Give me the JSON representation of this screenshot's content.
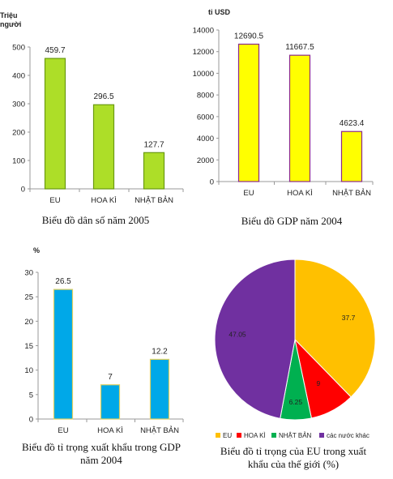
{
  "chart_data": [
    {
      "type": "bar",
      "title": "Biểu đồ dân số năm 2005",
      "ylabel_lines": [
        "Triệu",
        "người"
      ],
      "categories": [
        "EU",
        "HOA KÌ",
        "NHẬT BẢN"
      ],
      "values": [
        459.7,
        296.5,
        127.7
      ],
      "value_labels": [
        "459.7",
        "296.5",
        "127.7"
      ],
      "ylim": [
        0,
        500
      ],
      "yticks": [
        0,
        100,
        200,
        300,
        400,
        500
      ],
      "bar_color": "#adde28",
      "bar_border": "#6a9a10"
    },
    {
      "type": "bar",
      "title": "Biểu đồ GDP năm 2004",
      "ylabel": "tỉ USD",
      "categories": [
        "EU",
        "HOA KÌ",
        "NHẬT BẢN"
      ],
      "values": [
        12690.5,
        11667.5,
        4623.4
      ],
      "value_labels": [
        "12690.5",
        "11667.5",
        "4623.4"
      ],
      "ylim": [
        0,
        14000
      ],
      "yticks": [
        0,
        2000,
        4000,
        6000,
        8000,
        10000,
        12000,
        14000
      ],
      "bar_color": "#ffff00",
      "bar_border": "#8b2a8b"
    },
    {
      "type": "bar",
      "title_lines": [
        "Biểu đồ tỉ trọng xuất khẩu trong GDP",
        "năm 2004"
      ],
      "ylabel": "%",
      "categories": [
        "EU",
        "HOA KÌ",
        "NHẬT BẢN"
      ],
      "values": [
        26.5,
        7,
        12.2
      ],
      "value_labels": [
        "26.5",
        "7",
        "12.2"
      ],
      "ylim": [
        0,
        30
      ],
      "yticks": [
        0,
        5,
        10,
        15,
        20,
        25,
        30
      ],
      "bar_color": "#00a8e8",
      "bar_border": "#e0d060"
    },
    {
      "type": "pie",
      "title_lines": [
        "Biểu đồ tỉ trọng của EU trong xuất",
        "khẩu của thế giới (%)"
      ],
      "slices": [
        {
          "label": "EU",
          "value": 37.7,
          "value_label": "37.7",
          "color": "#ffc000"
        },
        {
          "label": "HOA KÌ",
          "value": 9,
          "value_label": "9",
          "color": "#ff0000"
        },
        {
          "label": "NHẬT BẢN",
          "value": 6.25,
          "value_label": "6.25",
          "color": "#00b050"
        },
        {
          "label": "các nước khác",
          "value": 47.05,
          "value_label": "47.05",
          "color": "#7030a0"
        }
      ]
    }
  ]
}
